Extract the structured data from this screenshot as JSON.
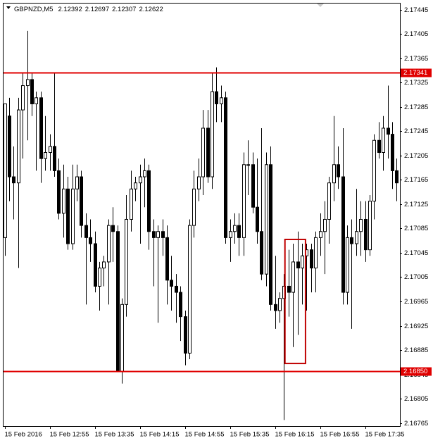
{
  "chart_data": {
    "type": "candlestick",
    "symbol": "GBPNZD,M5",
    "header_values": [
      2.12392,
      2.12697,
      2.12307,
      2.12622
    ],
    "categories": [
      "15 Feb 2016",
      null,
      null,
      null,
      null,
      null,
      null,
      null,
      null,
      null,
      "15 Feb 12:55",
      null,
      null,
      null,
      null,
      null,
      null,
      null,
      null,
      null,
      "15 Feb 13:35",
      null,
      null,
      null,
      null,
      null,
      null,
      null,
      null,
      null,
      "15 Feb 14:15",
      null,
      null,
      null,
      null,
      null,
      null,
      null,
      null,
      null,
      "15 Feb 14:55",
      null,
      null,
      null,
      null,
      null,
      null,
      null,
      null,
      null,
      "15 Feb 15:35",
      null,
      null,
      null,
      null,
      null,
      null,
      null,
      null,
      null,
      "15 Feb 16:15",
      null,
      null,
      null,
      null,
      null,
      null,
      null,
      null,
      null,
      "15 Feb 16:55",
      null,
      null,
      null,
      null,
      null,
      null,
      null,
      null,
      null,
      "15 Feb 17:35",
      null,
      null,
      null,
      null,
      null,
      null,
      null
    ],
    "open": [
      2.1707,
      2.1727,
      2.1717,
      2.1716,
      2.1728,
      2.1732,
      2.1733,
      2.1729,
      2.173,
      2.172,
      2.1721,
      2.1722,
      2.1718,
      2.1711,
      2.1715,
      2.1706,
      2.1715,
      2.1717,
      2.1709,
      2.1707,
      2.1706,
      2.1699,
      2.1702,
      2.1703,
      2.1709,
      2.1708,
      2.1685,
      2.1696,
      2.171,
      2.1715,
      2.1716,
      2.1717,
      2.1718,
      2.1708,
      2.1707,
      2.1708,
      2.1707,
      2.17,
      2.1699,
      2.1698,
      2.1694,
      2.1688,
      2.1709,
      2.1715,
      2.1717,
      2.1725,
      2.1717,
      2.1731,
      2.1729,
      2.173,
      2.1707,
      2.1708,
      2.1709,
      2.1707,
      2.1719,
      2.1719,
      2.1712,
      2.1708,
      2.1701,
      2.1719,
      2.1696,
      2.1695,
      2.1697,
      2.1699,
      2.1698,
      2.1703,
      2.1702,
      2.1704,
      2.1705,
      2.1702,
      2.1707,
      2.1708,
      2.171,
      2.1716,
      2.1719,
      2.1717,
      2.1698,
      2.1707,
      2.1706,
      2.1708,
      2.171,
      2.1705,
      2.1713,
      2.1723,
      2.1721,
      2.1725,
      2.1724,
      2.1718
    ],
    "high": [
      2.1729,
      2.173,
      2.1722,
      2.173,
      2.1734,
      2.1741,
      2.1734,
      2.1731,
      2.1731,
      2.1727,
      2.1724,
      2.1734,
      2.172,
      2.1719,
      2.1717,
      2.1719,
      2.1719,
      2.1718,
      2.1711,
      2.171,
      2.1708,
      2.1703,
      2.1704,
      2.171,
      2.1712,
      2.1709,
      2.1697,
      2.1714,
      2.1718,
      2.1717,
      2.1719,
      2.172,
      2.1719,
      2.171,
      2.1709,
      2.171,
      2.1709,
      2.1704,
      2.1701,
      2.1699,
      2.1695,
      2.171,
      2.1718,
      2.172,
      2.1728,
      2.1728,
      2.1734,
      2.1735,
      2.1732,
      2.1731,
      2.171,
      2.1711,
      2.1711,
      2.1721,
      2.1723,
      2.1721,
      2.172,
      2.1725,
      2.1721,
      2.1722,
      2.1704,
      2.1698,
      2.1701,
      2.1705,
      2.1706,
      2.1708,
      2.1706,
      2.1706,
      2.1706,
      2.1708,
      2.1711,
      2.1713,
      2.1717,
      2.1727,
      2.1722,
      2.1725,
      2.1709,
      2.171,
      2.1715,
      2.1713,
      2.1713,
      2.1714,
      2.1724,
      2.1726,
      2.1727,
      2.1732,
      2.1726,
      2.172
    ],
    "low": [
      2.1704,
      2.1713,
      2.171,
      2.1702,
      2.172,
      2.1723,
      2.1727,
      2.1718,
      2.1716,
      2.1718,
      2.1718,
      2.1717,
      2.171,
      2.1707,
      2.1705,
      2.1705,
      2.1713,
      2.1707,
      2.1696,
      2.1703,
      2.1698,
      2.1695,
      2.1699,
      2.1696,
      2.1703,
      2.1685,
      2.1683,
      2.1694,
      2.1708,
      2.1713,
      2.1706,
      2.1712,
      2.1705,
      2.1699,
      2.1693,
      2.1704,
      2.1696,
      2.1695,
      2.1693,
      2.169,
      2.1686,
      2.1687,
      2.1707,
      2.1713,
      2.1714,
      2.1716,
      2.1715,
      2.1726,
      2.1726,
      2.1706,
      2.1703,
      2.1706,
      2.1704,
      2.1704,
      2.1714,
      2.1711,
      2.1706,
      2.17,
      2.1699,
      2.1695,
      2.1692,
      2.1693,
      2.1677,
      2.1694,
      2.1689,
      2.1691,
      2.1696,
      2.1695,
      2.1698,
      2.1698,
      2.1704,
      2.1701,
      2.1706,
      2.1713,
      2.1715,
      2.1696,
      2.1696,
      2.1692,
      2.1704,
      2.1704,
      2.1703,
      2.1704,
      2.171,
      2.172,
      2.1718,
      2.172,
      2.1715,
      2.1713
    ],
    "close": [
      2.1729,
      2.1717,
      2.1716,
      2.1728,
      2.1732,
      2.1733,
      2.1729,
      2.173,
      2.172,
      2.1721,
      2.1722,
      2.1718,
      2.1711,
      2.1715,
      2.1706,
      2.1715,
      2.1717,
      2.1709,
      2.1707,
      2.1706,
      2.1699,
      2.1702,
      2.1703,
      2.1709,
      2.1708,
      2.1685,
      2.1696,
      2.171,
      2.1715,
      2.1716,
      2.1717,
      2.1718,
      2.1708,
      2.1707,
      2.1708,
      2.1707,
      2.17,
      2.1699,
      2.1698,
      2.1694,
      2.1688,
      2.1709,
      2.1715,
      2.1717,
      2.1725,
      2.1717,
      2.1731,
      2.1729,
      2.173,
      2.1707,
      2.1708,
      2.1709,
      2.1707,
      2.1719,
      2.1719,
      2.1712,
      2.1708,
      2.1701,
      2.1719,
      2.1696,
      2.1695,
      2.1697,
      2.1699,
      2.1698,
      2.1703,
      2.1702,
      2.1704,
      2.1705,
      2.1702,
      2.1707,
      2.1708,
      2.171,
      2.1716,
      2.1719,
      2.1717,
      2.1698,
      2.1707,
      2.1706,
      2.1708,
      2.171,
      2.1705,
      2.1713,
      2.1723,
      2.1721,
      2.1725,
      2.1724,
      2.1718,
      2.1716
    ],
    "up_color": "#ffffff",
    "down_color": "#000000",
    "ylim": [
      2.1676,
      2.17455
    ],
    "yticks": [
      2.17445,
      2.17405,
      2.17365,
      2.17325,
      2.17285,
      2.17245,
      2.17205,
      2.17165,
      2.17125,
      2.17085,
      2.17045,
      2.17005,
      2.16965,
      2.16925,
      2.16885,
      2.16845,
      2.16805,
      2.16765
    ],
    "hlines": [
      {
        "value": 2.17341,
        "label": "2.17341",
        "color": "#e00000"
      },
      {
        "value": 2.1685,
        "label": "2.16850",
        "color": "#e00000"
      }
    ],
    "rectangle": {
      "x": [
        63,
        66
      ],
      "y": [
        2.16863,
        2.17067
      ],
      "color": "#c00000"
    }
  }
}
